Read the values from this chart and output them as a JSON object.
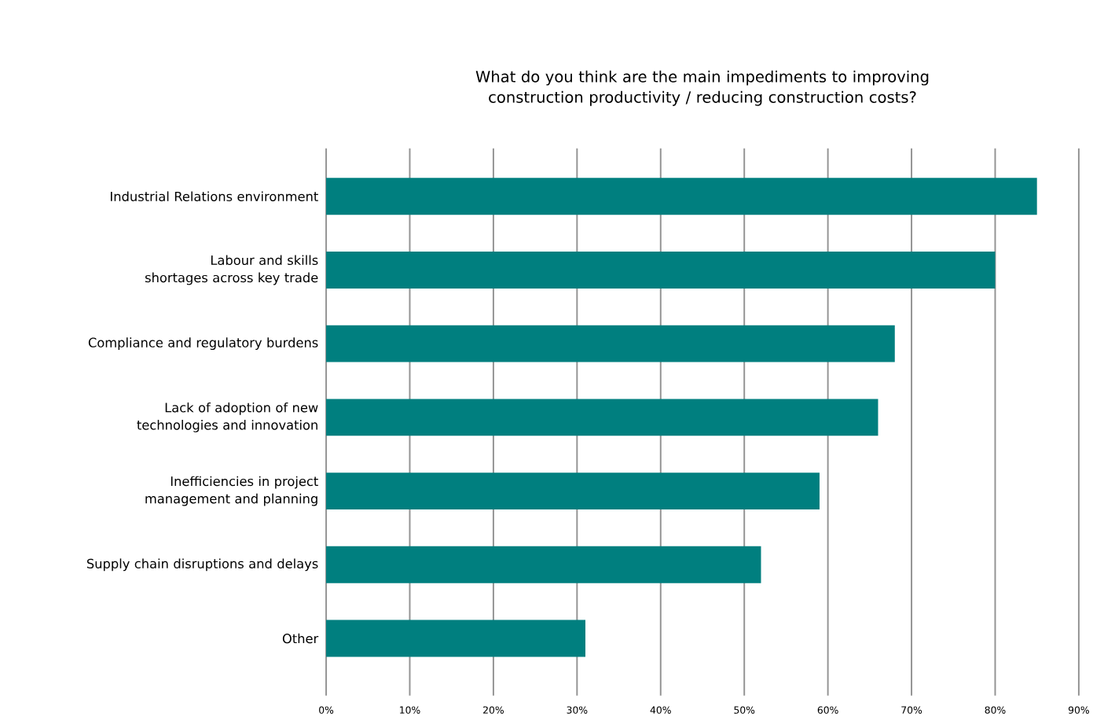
{
  "chart_data": {
    "type": "bar",
    "orientation": "horizontal",
    "title": "What do you think are the main impediments to improving construction productivity / reducing construction costs?",
    "categories": [
      "Industrial Relations environment",
      "Labour and skills shortages across key trade",
      "Compliance and regulatory burdens",
      "Lack of adoption of new technologies and innovation",
      "Inefficiencies in project management and planning",
      "Supply chain disruptions and delays",
      "Other"
    ],
    "values": [
      85,
      80,
      68,
      66,
      59,
      52,
      31
    ],
    "color": "#007f7f",
    "xlim": [
      0,
      90
    ],
    "xticks": [
      {
        "value": 0,
        "label": "0%"
      },
      {
        "value": 10,
        "label": "10%"
      },
      {
        "value": 20,
        "label": "20%"
      },
      {
        "value": 30,
        "label": "30%"
      },
      {
        "value": 40,
        "label": "40%"
      },
      {
        "value": 50,
        "label": "50%"
      },
      {
        "value": 60,
        "label": "60%"
      },
      {
        "value": 70,
        "label": "70%"
      },
      {
        "value": 80,
        "label": "80%"
      },
      {
        "value": 90,
        "label": "90%"
      }
    ],
    "grid": "x"
  }
}
